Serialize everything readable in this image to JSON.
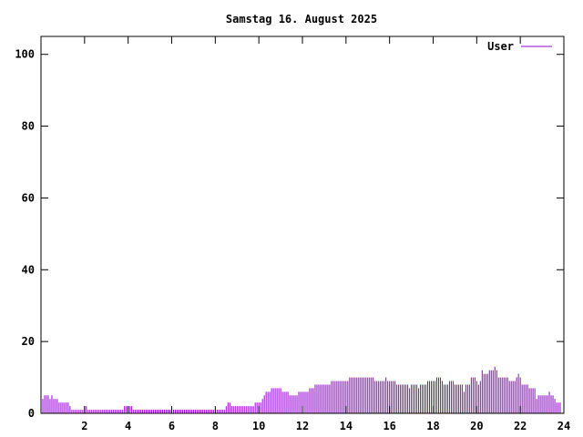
{
  "chart_data": {
    "type": "bar",
    "title": "Samstag 16. August 2025",
    "xlabel": "",
    "ylabel": "",
    "xlim": [
      0,
      24
    ],
    "ylim": [
      0,
      105
    ],
    "xticks": [
      2,
      4,
      6,
      8,
      10,
      12,
      14,
      16,
      18,
      20,
      22,
      24
    ],
    "yticks": [
      0,
      20,
      40,
      60,
      80,
      100
    ],
    "grid": false,
    "legend": "top-right",
    "series": [
      {
        "name": "User",
        "color": "#9400d3",
        "samples_per_hour": 12,
        "values": [
          4,
          5,
          5,
          5,
          4,
          5,
          4,
          4,
          4,
          3,
          3,
          3,
          3,
          3,
          3,
          2,
          1,
          1,
          1,
          1,
          1,
          1,
          1,
          2,
          2,
          1,
          1,
          1,
          1,
          1,
          1,
          1,
          1,
          1,
          1,
          1,
          1,
          1,
          1,
          1,
          1,
          1,
          1,
          1,
          1,
          2,
          2,
          2,
          2,
          2,
          1,
          1,
          1,
          1,
          1,
          1,
          1,
          1,
          1,
          1,
          1,
          1,
          1,
          1,
          1,
          1,
          1,
          1,
          1,
          1,
          1,
          1,
          1,
          1,
          1,
          1,
          1,
          1,
          1,
          1,
          1,
          1,
          1,
          1,
          1,
          1,
          1,
          1,
          1,
          1,
          1,
          1,
          1,
          1,
          1,
          1,
          1,
          1,
          1,
          1,
          1,
          2,
          3,
          3,
          2,
          2,
          2,
          2,
          2,
          2,
          2,
          2,
          2,
          2,
          2,
          2,
          2,
          3,
          3,
          3,
          3,
          4,
          5,
          6,
          6,
          6,
          7,
          7,
          7,
          7,
          7,
          7,
          6,
          6,
          6,
          6,
          5,
          5,
          5,
          5,
          5,
          6,
          6,
          6,
          6,
          6,
          6,
          7,
          7,
          7,
          8,
          8,
          8,
          8,
          8,
          8,
          8,
          8,
          8,
          9,
          9,
          9,
          9,
          9,
          9,
          9,
          9,
          9,
          9,
          10,
          10,
          10,
          10,
          10,
          10,
          10,
          10,
          10,
          10,
          10,
          10,
          10,
          10,
          9,
          9,
          9,
          9,
          9,
          9,
          10,
          9,
          9,
          9,
          9,
          9,
          8,
          8,
          8,
          8,
          8,
          8,
          8,
          7,
          8,
          8,
          8,
          8,
          7,
          8,
          8,
          8,
          8,
          9,
          9,
          9,
          9,
          9,
          10,
          10,
          10,
          9,
          8,
          8,
          8,
          9,
          9,
          9,
          8,
          8,
          8,
          8,
          8,
          6,
          8,
          8,
          8,
          10,
          10,
          10,
          9,
          8,
          9,
          12,
          11,
          11,
          11,
          12,
          12,
          12,
          13,
          12,
          10,
          10,
          10,
          10,
          10,
          10,
          9,
          9,
          9,
          9,
          10,
          11,
          10,
          8,
          8,
          8,
          8,
          7,
          7,
          7,
          7,
          4,
          5,
          5,
          5,
          5,
          5,
          5,
          6,
          5,
          5,
          4,
          3,
          3,
          3
        ]
      }
    ]
  }
}
